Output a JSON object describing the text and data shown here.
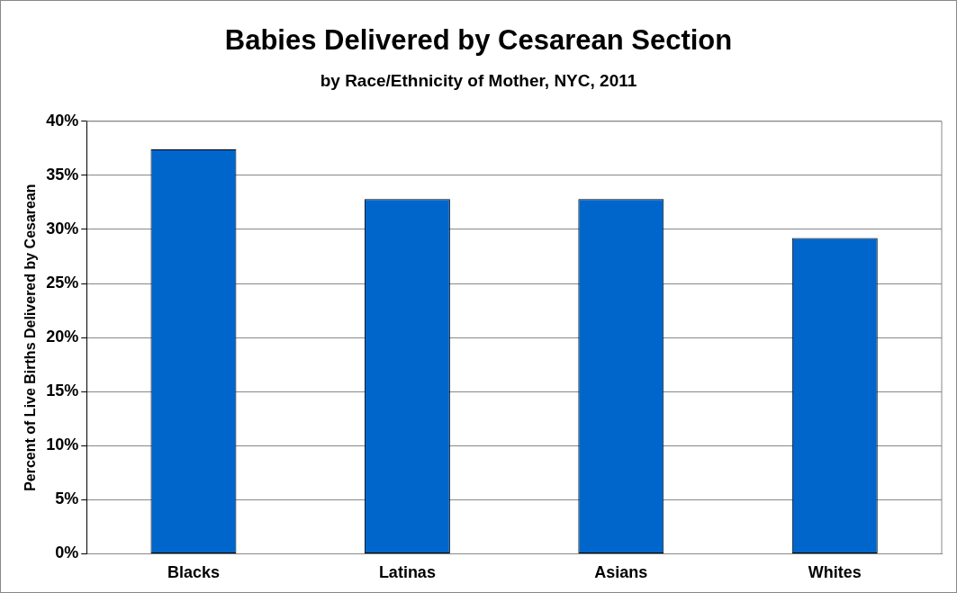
{
  "chart_data": {
    "type": "bar",
    "title": "Babies Delivered by Cesarean Section",
    "subtitle": "by Race/Ethnicity of Mother, NYC, 2011",
    "ylabel": "Percent of Live Births Delivered by Cesarean",
    "categories": [
      "Blacks",
      "Latinas",
      "Asians",
      "Whites"
    ],
    "values": [
      37.4,
      32.8,
      32.8,
      29.2
    ],
    "color": "#0066cc",
    "ylim": [
      0,
      40
    ],
    "yticks": [
      {
        "value": 0,
        "label": "0%"
      },
      {
        "value": 5,
        "label": "5%"
      },
      {
        "value": 10,
        "label": "10%"
      },
      {
        "value": 15,
        "label": "15%"
      },
      {
        "value": 20,
        "label": "20%"
      },
      {
        "value": 25,
        "label": "25%"
      },
      {
        "value": 30,
        "label": "30%"
      },
      {
        "value": 35,
        "label": "35%"
      },
      {
        "value": 40,
        "label": "40%"
      }
    ],
    "grid": "y",
    "legend": false
  }
}
